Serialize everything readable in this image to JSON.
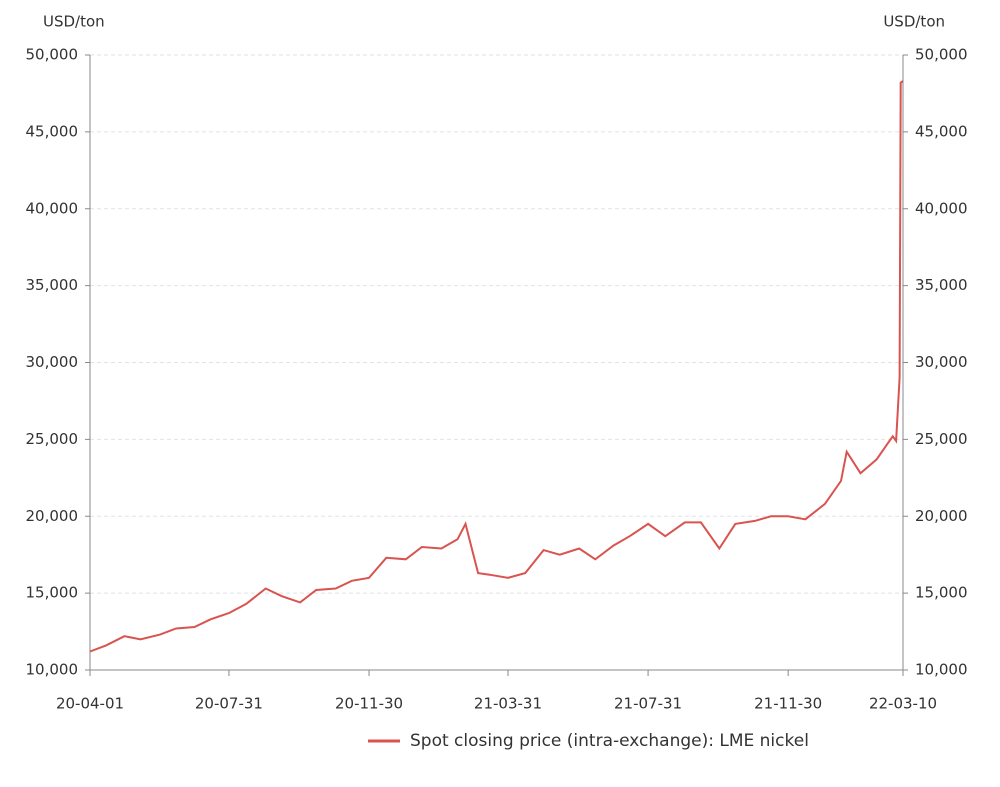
{
  "chart_data": {
    "type": "line",
    "y_label": "USD/ton",
    "y2_label": "USD/ton",
    "x": [
      "20-04-01",
      "20-04-15",
      "20-05-01",
      "20-05-15",
      "20-06-01",
      "20-06-15",
      "20-07-01",
      "20-07-15",
      "20-07-31",
      "20-08-15",
      "20-09-01",
      "20-09-15",
      "20-10-01",
      "20-10-15",
      "20-11-01",
      "20-11-15",
      "20-11-30",
      "20-12-15",
      "21-01-01",
      "21-01-15",
      "21-02-01",
      "21-02-15",
      "21-02-22",
      "21-03-05",
      "21-03-15",
      "21-03-31",
      "21-04-15",
      "21-05-01",
      "21-05-15",
      "21-06-01",
      "21-06-15",
      "21-07-01",
      "21-07-15",
      "21-07-31",
      "21-08-15",
      "21-09-01",
      "21-09-15",
      "21-10-01",
      "21-10-15",
      "21-11-01",
      "21-11-15",
      "21-11-30",
      "21-12-15",
      "22-01-01",
      "22-01-15",
      "22-01-20",
      "22-02-01",
      "22-02-15",
      "22-03-01",
      "22-03-04",
      "22-03-07",
      "22-03-08",
      "22-03-10"
    ],
    "series": [
      {
        "name": "Spot closing price (intra-exchange): LME nickel",
        "color": "#d9534f",
        "values": [
          11200,
          11600,
          12200,
          12000,
          12300,
          12700,
          12800,
          13300,
          13700,
          14300,
          15300,
          14800,
          14400,
          15200,
          15300,
          15800,
          16000,
          17300,
          17200,
          18000,
          17900,
          18500,
          19500,
          16300,
          16200,
          16000,
          16300,
          17800,
          17500,
          17900,
          17200,
          18100,
          18700,
          19500,
          18700,
          19600,
          19600,
          17900,
          19500,
          19700,
          20000,
          20000,
          19800,
          20800,
          22300,
          24200,
          22800,
          23700,
          25200,
          24900,
          29000,
          48200,
          48300
        ]
      }
    ],
    "xlim": [
      "20-04-01",
      "22-03-10"
    ],
    "xticks": [
      "20-04-01",
      "20-07-31",
      "20-11-30",
      "21-03-31",
      "21-07-31",
      "21-11-30",
      "22-03-10"
    ],
    "ylim": [
      10000,
      50000
    ],
    "yticks": [
      {
        "value": 10000,
        "label": "10,000"
      },
      {
        "value": 15000,
        "label": "15,000"
      },
      {
        "value": 20000,
        "label": "20,000"
      },
      {
        "value": 25000,
        "label": "25,000"
      },
      {
        "value": 30000,
        "label": "30,000"
      },
      {
        "value": 35000,
        "label": "35,000"
      },
      {
        "value": 40000,
        "label": "40,000"
      },
      {
        "value": 45000,
        "label": "45,000"
      },
      {
        "value": 50000,
        "label": "50,000"
      }
    ],
    "y2lim": [
      10000,
      50000
    ],
    "y2ticks": [
      {
        "value": 10000,
        "label": "10,000"
      },
      {
        "value": 15000,
        "label": "15,000"
      },
      {
        "value": 20000,
        "label": "20,000"
      },
      {
        "value": 25000,
        "label": "25,000"
      },
      {
        "value": 30000,
        "label": "30,000"
      },
      {
        "value": 35000,
        "label": "35,000"
      },
      {
        "value": 40000,
        "label": "40,000"
      },
      {
        "value": 45000,
        "label": "45,000"
      },
      {
        "value": 50000,
        "label": "50,000"
      }
    ],
    "grid": true
  }
}
